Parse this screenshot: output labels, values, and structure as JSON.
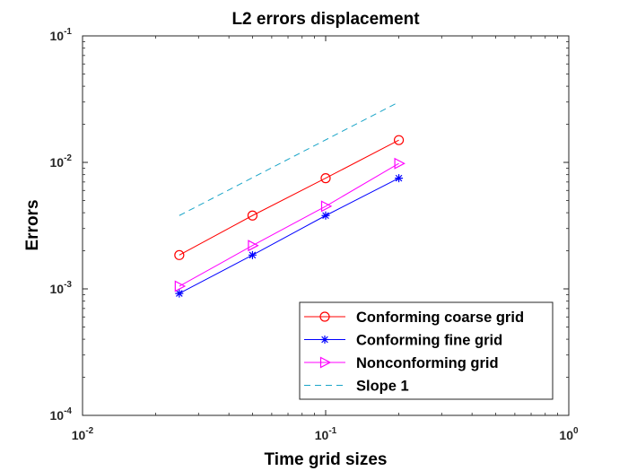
{
  "chart_data": {
    "type": "line",
    "title": "L2 errors displacement",
    "xlabel": "Time grid sizes",
    "ylabel": "Errors",
    "xscale": "log",
    "yscale": "log",
    "xlim": [
      0.01,
      1
    ],
    "ylim": [
      0.0001,
      0.1
    ],
    "x_ticks": [
      {
        "value": 0.01,
        "base": "10",
        "exp": "-2"
      },
      {
        "value": 0.1,
        "base": "10",
        "exp": "-1"
      },
      {
        "value": 1,
        "base": "10",
        "exp": "0"
      }
    ],
    "y_ticks": [
      {
        "value": 0.0001,
        "base": "10",
        "exp": "-4"
      },
      {
        "value": 0.001,
        "base": "10",
        "exp": "-3"
      },
      {
        "value": 0.01,
        "base": "10",
        "exp": "-2"
      },
      {
        "value": 0.1,
        "base": "10",
        "exp": "-1"
      }
    ],
    "grid": false,
    "legend_position": "bottom-right",
    "series": [
      {
        "name": "Conforming coarse grid",
        "color": "#ff0000",
        "marker": "circle",
        "line_style": "solid",
        "x": [
          0.025,
          0.05,
          0.1,
          0.2
        ],
        "y": [
          0.00185,
          0.0038,
          0.0075,
          0.015
        ]
      },
      {
        "name": "Conforming fine grid",
        "color": "#0000ff",
        "marker": "asterisk",
        "line_style": "solid",
        "x": [
          0.025,
          0.05,
          0.1,
          0.2
        ],
        "y": [
          0.00092,
          0.00185,
          0.0038,
          0.0075
        ]
      },
      {
        "name": "Nonconforming grid",
        "color": "#ff00ff",
        "marker": "triangle-right",
        "line_style": "solid",
        "x": [
          0.025,
          0.05,
          0.1,
          0.2
        ],
        "y": [
          0.00105,
          0.0022,
          0.0045,
          0.0098
        ]
      },
      {
        "name": "Slope 1",
        "color": "#1aa5c8",
        "marker": "none",
        "line_style": "dashed",
        "x": [
          0.025,
          0.2
        ],
        "y": [
          0.0038,
          0.03
        ]
      }
    ]
  }
}
